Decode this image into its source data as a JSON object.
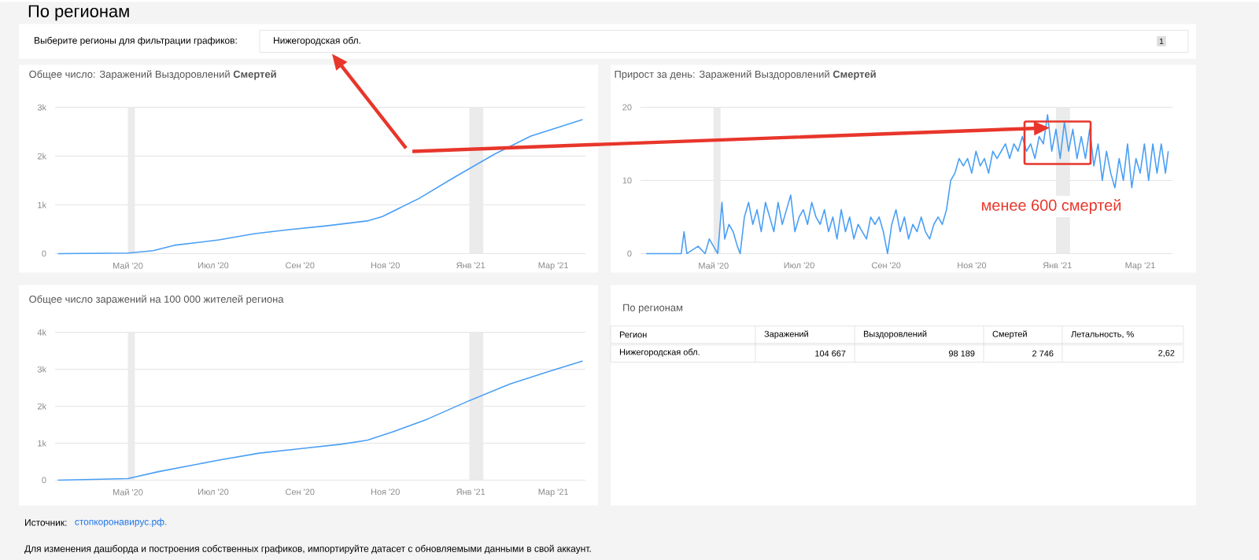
{
  "chart_data": [
    {
      "type": "line",
      "title": "Общее число: Заражений Выздоровлений **Смертей**",
      "x": [
        "2020-03-12",
        "2020-05-01",
        "2020-05-19",
        "2020-06-03",
        "2020-07-05",
        "2020-07-31",
        "2020-08-24",
        "2020-09-20",
        "2020-10-19",
        "2020-10-30",
        "2020-11-25",
        "2020-12-20",
        "2021-01-18",
        "2021-02-13",
        "2021-03-22"
      ],
      "series": [
        {
          "color": "#4a9ff5",
          "values": [
            0,
            10,
            60,
            170,
            280,
            410,
            490,
            570,
            670,
            760,
            1130,
            1560,
            2040,
            2410,
            2750
          ]
        }
      ],
      "xlim": [
        "2020-03-10",
        "2021-03-24"
      ],
      "xticks": [
        {
          "value": "2020-05-01",
          "label": "Май '20"
        },
        {
          "value": "2020-07-01",
          "label": "Июл '20"
        },
        {
          "value": "2020-09-01",
          "label": "Сен '20"
        },
        {
          "value": "2020-11-01",
          "label": "Ноя '20"
        },
        {
          "value": "2021-01-01",
          "label": "Янв '21"
        },
        {
          "value": "2021-03-01",
          "label": "Мар '21"
        }
      ],
      "ylim": [
        0,
        3000
      ],
      "yticks": [
        0,
        {
          "value": 1000,
          "label": "1k"
        },
        {
          "value": 2000,
          "label": "2k"
        },
        {
          "value": 3000,
          "label": "3k"
        }
      ],
      "grid": "y",
      "bands": [
        {
          "axis": "x",
          "from": "2020-05-01",
          "to": "2020-05-06",
          "color": "#ebebeb"
        },
        {
          "axis": "x",
          "from": "2020-12-31",
          "to": "2021-01-10",
          "color": "#ebebeb"
        }
      ],
      "annotations": [
        "По регионам",
        "Выберите регионы для фильтрации графиков:",
        "Нижегородская обл.",
        "1",
        "Источник:",
        "стопкоронавирус.рф.",
        "Для изменения дашборда и построения собственных графиков, импортируйте датасет с обновляемыми данными в свой аккаунт."
      ]
    },
    {
      "type": "line",
      "title": "Прирост за день: Заражений Выздоровлений **Смертей**",
      "x": [
        "2020-03-14",
        "2020-04-08",
        "2020-04-10",
        "2020-04-12",
        "2020-04-20",
        "2020-04-25",
        "2020-04-28",
        "2020-05-01",
        "2020-05-04",
        "2020-05-07",
        "2020-05-09",
        "2020-05-12",
        "2020-05-15",
        "2020-05-18",
        "2020-05-20",
        "2020-05-23",
        "2020-05-26",
        "2020-05-29",
        "2020-06-01",
        "2020-06-04",
        "2020-06-07",
        "2020-06-10",
        "2020-06-13",
        "2020-06-16",
        "2020-06-19",
        "2020-06-22",
        "2020-06-25",
        "2020-06-28",
        "2020-07-01",
        "2020-07-04",
        "2020-07-07",
        "2020-07-10",
        "2020-07-13",
        "2020-07-16",
        "2020-07-19",
        "2020-07-22",
        "2020-07-25",
        "2020-07-28",
        "2020-07-31",
        "2020-08-03",
        "2020-08-06",
        "2020-08-09",
        "2020-08-12",
        "2020-08-15",
        "2020-08-18",
        "2020-08-21",
        "2020-08-24",
        "2020-08-27",
        "2020-08-30",
        "2020-09-02",
        "2020-09-05",
        "2020-09-08",
        "2020-09-11",
        "2020-09-14",
        "2020-09-17",
        "2020-09-20",
        "2020-09-23",
        "2020-09-26",
        "2020-09-29",
        "2020-10-02",
        "2020-10-05",
        "2020-10-08",
        "2020-10-11",
        "2020-10-14",
        "2020-10-17",
        "2020-10-20",
        "2020-10-23",
        "2020-10-26",
        "2020-10-29",
        "2020-11-01",
        "2020-11-04",
        "2020-11-07",
        "2020-11-10",
        "2020-11-13",
        "2020-11-16",
        "2020-11-19",
        "2020-11-22",
        "2020-11-25",
        "2020-11-28",
        "2020-12-01",
        "2020-12-04",
        "2020-12-07",
        "2020-12-10",
        "2020-12-13",
        "2020-12-16",
        "2020-12-19",
        "2020-12-22",
        "2020-12-25",
        "2020-12-28",
        "2020-12-31",
        "2021-01-03",
        "2021-01-06",
        "2021-01-09",
        "2021-01-12",
        "2021-01-15",
        "2021-01-18",
        "2021-01-21",
        "2021-01-24",
        "2021-01-27",
        "2021-01-30",
        "2021-02-02",
        "2021-02-05",
        "2021-02-08",
        "2021-02-11",
        "2021-02-14",
        "2021-02-17",
        "2021-02-20",
        "2021-02-23",
        "2021-02-26",
        "2021-03-01",
        "2021-03-04",
        "2021-03-07",
        "2021-03-10",
        "2021-03-13",
        "2021-03-16",
        "2021-03-19",
        "2021-03-21"
      ],
      "series": [
        {
          "color": "#4a9ff5",
          "values": [
            0,
            0,
            3,
            0,
            1,
            0,
            2,
            1,
            0,
            7,
            2,
            4,
            3,
            1,
            0,
            5,
            7,
            4,
            6,
            3,
            7,
            5,
            3,
            7,
            4,
            6,
            8,
            3,
            5,
            6,
            4,
            7,
            5,
            4,
            6,
            3,
            5,
            2,
            6,
            3,
            5,
            2,
            4,
            3,
            2,
            5,
            4,
            5,
            3,
            0,
            4,
            6,
            3,
            5,
            2,
            4,
            3,
            5,
            3,
            2,
            4,
            5,
            4,
            6,
            10,
            11,
            13,
            12,
            13,
            11,
            14,
            12,
            13,
            11,
            14,
            13,
            14,
            15,
            13,
            15,
            14,
            16,
            14,
            15,
            13,
            16,
            15,
            19,
            14,
            17,
            13,
            18,
            14,
            17,
            13,
            16,
            13,
            17,
            12,
            15,
            10,
            14,
            11,
            9,
            13,
            10,
            15,
            9,
            13,
            11,
            15,
            10,
            15,
            11,
            15,
            11,
            14
          ]
        }
      ],
      "xlim": [
        "2020-03-10",
        "2021-03-24"
      ],
      "xticks": [
        {
          "value": "2020-05-01",
          "label": "Май '20"
        },
        {
          "value": "2020-07-01",
          "label": "Июл '20"
        },
        {
          "value": "2020-09-01",
          "label": "Сен '20"
        },
        {
          "value": "2020-11-01",
          "label": "Ноя '20"
        },
        {
          "value": "2021-01-01",
          "label": "Янв '21"
        },
        {
          "value": "2021-03-01",
          "label": "Мар '21"
        }
      ],
      "ylim": [
        0,
        20
      ],
      "yticks": [
        0,
        10,
        20
      ],
      "grid": "y",
      "bands": [
        {
          "axis": "x",
          "from": "2020-05-01",
          "to": "2020-05-06",
          "color": "#ebebeb"
        },
        {
          "axis": "x",
          "from": "2020-12-31",
          "to": "2021-01-10",
          "color": "#ebebeb"
        }
      ],
      "annotations": [
        "менее 600 смертей"
      ]
    },
    {
      "type": "line",
      "title": "Общее число заражений на 100 000 жителей региона",
      "x": [
        "2020-03-12",
        "2020-05-01",
        "2020-05-23",
        "2020-07-05",
        "2020-08-03",
        "2020-09-01",
        "2020-09-30",
        "2020-10-19",
        "2020-11-06",
        "2020-12-01",
        "2020-12-31",
        "2021-01-29",
        "2021-02-25",
        "2021-03-22"
      ],
      "series": [
        {
          "color": "#4a9ff5",
          "values": [
            0,
            40,
            230,
            540,
            730,
            850,
            970,
            1080,
            1300,
            1650,
            2150,
            2600,
            2930,
            3220
          ]
        }
      ],
      "xlim": [
        "2020-03-10",
        "2021-03-24"
      ],
      "xticks": [
        {
          "value": "2020-05-01",
          "label": "Май '20"
        },
        {
          "value": "2020-07-01",
          "label": "Июл '20"
        },
        {
          "value": "2020-09-01",
          "label": "Сен '20"
        },
        {
          "value": "2020-11-01",
          "label": "Ноя '20"
        },
        {
          "value": "2021-01-01",
          "label": "Янв '21"
        },
        {
          "value": "2021-03-01",
          "label": "Мар '21"
        }
      ],
      "ylim": [
        0,
        4000
      ],
      "yticks": [
        0,
        {
          "value": 1000,
          "label": "1k"
        },
        {
          "value": 2000,
          "label": "2k"
        },
        {
          "value": 3000,
          "label": "3k"
        },
        {
          "value": 4000,
          "label": "4k"
        }
      ],
      "grid": "y",
      "bands": [
        {
          "axis": "x",
          "from": "2020-05-01",
          "to": "2020-05-06",
          "color": "#ebebeb"
        },
        {
          "axis": "x",
          "from": "2020-12-31",
          "to": "2021-01-10",
          "color": "#ebebeb"
        }
      ]
    },
    {
      "type": "other",
      "title": "По регионам",
      "categories": [
        "Заражений",
        "Выздоровлений",
        "Смертей",
        "Летальность, %"
      ],
      "value_labels": [
        "104 667",
        "98 189",
        "2 746",
        "2,62"
      ],
      "annotations": [
        "Регион",
        "Нижегородская обл."
      ]
    }
  ]
}
